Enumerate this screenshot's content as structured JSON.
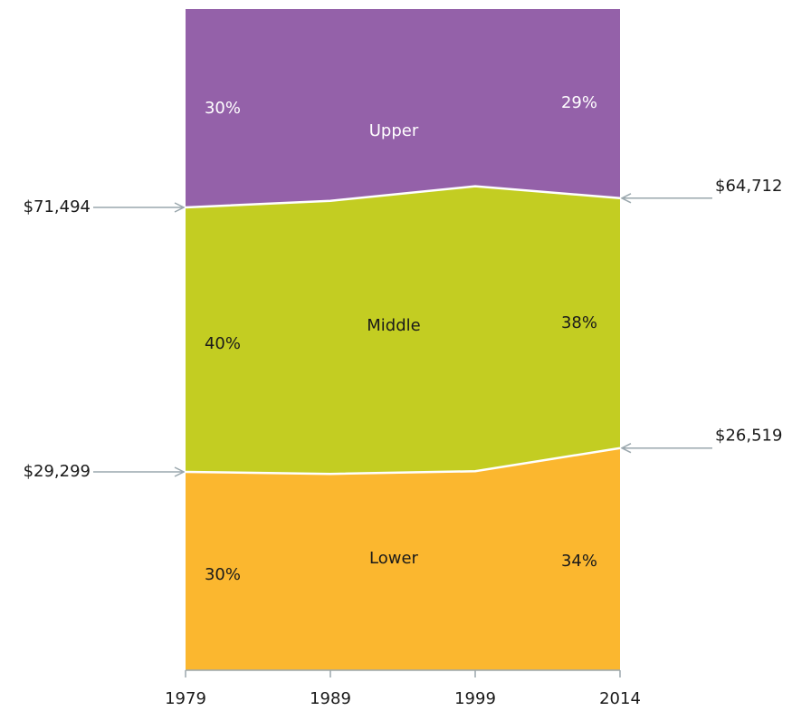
{
  "chart_data": {
    "type": "stacked_area",
    "categories": [
      "1979",
      "1989",
      "1999",
      "2014"
    ],
    "series": [
      {
        "name": "Lower",
        "color": "#fbb72f",
        "values": [
          30,
          29.7,
          30.1,
          33.6
        ],
        "value_labels": [
          "30%",
          null,
          null,
          "34%"
        ]
      },
      {
        "name": "Middle",
        "color": "#c3cd22",
        "values": [
          40,
          41.3,
          43.1,
          37.8
        ],
        "value_labels": [
          "40%",
          null,
          null,
          "38%"
        ]
      },
      {
        "name": "Upper",
        "color": "#9461a9",
        "values": [
          30,
          29,
          26.8,
          28.6
        ],
        "value_labels": [
          "30%",
          null,
          null,
          "29%"
        ]
      }
    ],
    "ylim": [
      0,
      100
    ],
    "annotations": [
      "$71,494",
      "$29,299",
      "$64,712",
      "$26,519"
    ]
  }
}
